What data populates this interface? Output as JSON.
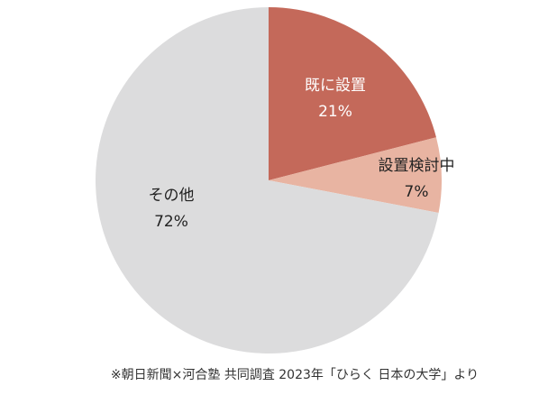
{
  "chart_data": {
    "type": "pie",
    "categories": [
      "既に設置",
      "設置検討中",
      "その他"
    ],
    "values": [
      21,
      7,
      72
    ],
    "value_labels": [
      "21%",
      "7%",
      "72%"
    ],
    "colors": [
      "#c4695a",
      "#e8b4a2",
      "#dcdcdd"
    ],
    "source": "※朝日新聞×河合塾 共同調査 2023年「ひらく 日本の大学」より"
  }
}
